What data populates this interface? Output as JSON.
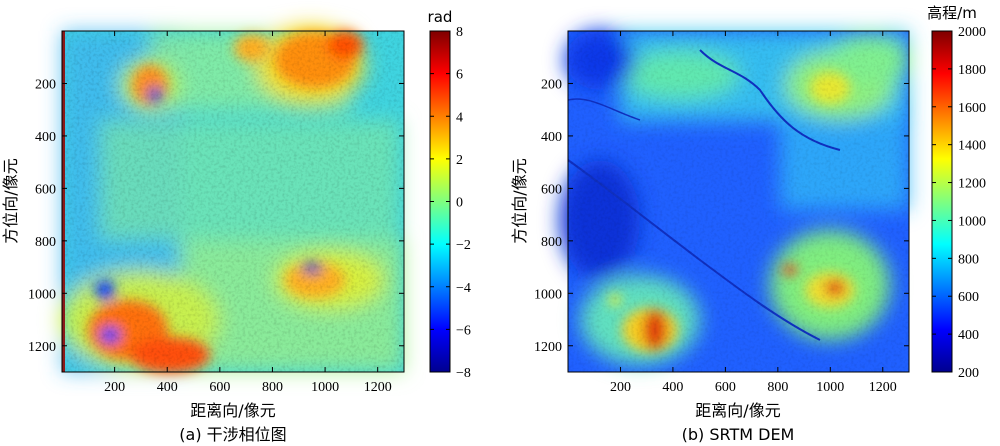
{
  "colors": {
    "jet": [
      "#00008f",
      "#0000ff",
      "#007fff",
      "#00ffff",
      "#7fff7f",
      "#ffff00",
      "#ff7f00",
      "#ff0000",
      "#7f0000"
    ]
  },
  "chart_data": [
    {
      "type": "heatmap",
      "title": "",
      "caption": "(a) 干涉相位图",
      "xlabel": "距离向/像元",
      "ylabel": "方位向/像元",
      "xlim": [
        0,
        1300
      ],
      "ylim": [
        1300,
        0
      ],
      "xticks": [
        200,
        400,
        600,
        800,
        1000,
        1200
      ],
      "yticks": [
        200,
        400,
        600,
        800,
        1000,
        1200
      ],
      "colorbar": {
        "label": "rad",
        "range": [
          -8,
          8
        ],
        "ticks": [
          8,
          6,
          4,
          2,
          0,
          -2,
          -4,
          -6,
          -8
        ],
        "tick_labels": [
          "8",
          "6",
          "4",
          "2",
          "0",
          "−2",
          "−4",
          "−6",
          "−8"
        ],
        "colormap": "jet"
      }
    },
    {
      "type": "heatmap",
      "title": "",
      "caption": "(b)  SRTM DEM",
      "xlabel": "距离向/像元",
      "ylabel": "方位向/像元",
      "xlim": [
        0,
        1300
      ],
      "ylim": [
        1300,
        0
      ],
      "xticks": [
        200,
        400,
        600,
        800,
        1000,
        1200
      ],
      "yticks": [
        200,
        400,
        600,
        800,
        1000,
        1200
      ],
      "colorbar": {
        "label": "高程/m",
        "range": [
          200,
          2000
        ],
        "ticks": [
          2000,
          1800,
          1600,
          1400,
          1200,
          1000,
          800,
          600,
          400,
          200
        ],
        "tick_labels": [
          "2000",
          "1800",
          "1600",
          "1400",
          "1200",
          "1000",
          "800",
          "600",
          "400",
          "200"
        ],
        "colormap": "jet"
      }
    }
  ]
}
